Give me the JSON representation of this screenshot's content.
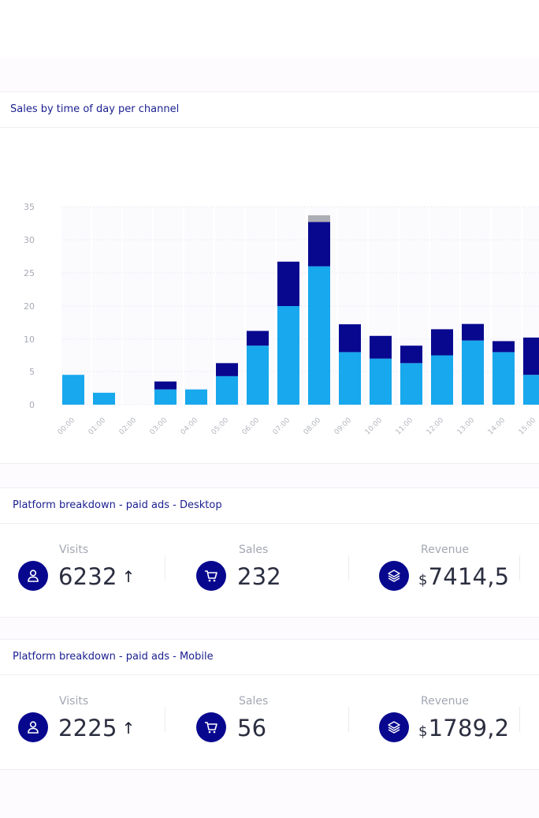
{
  "sales_chart": {
    "title": "Sales by time of day per channel"
  },
  "chart_data": {
    "type": "bar",
    "stacked": true,
    "categories": [
      "00:00",
      "01:00",
      "02:00",
      "03:00",
      "04:00",
      "05:00",
      "06:00",
      "07:00",
      "08:00",
      "09:00",
      "10:00",
      "11:00",
      "12:00",
      "13:00",
      "14:00",
      "15:00"
    ],
    "y_ticks": [
      0,
      5,
      10,
      20,
      25,
      30,
      35
    ],
    "series": [
      {
        "color": "#17a8ed",
        "values": [
          4.5,
          1.8,
          0,
          2.3,
          2.3,
          4.3,
          9,
          20,
          26,
          8,
          7,
          6.3,
          7.5,
          9.8,
          8,
          4.5
        ]
      },
      {
        "color": "#08088f",
        "values": [
          0,
          0,
          0,
          1.2,
          0,
          2,
          3.5,
          6.7,
          6.7,
          6.5,
          4,
          2.7,
          5.5,
          4.8,
          1.7,
          6
        ]
      },
      {
        "color": "#adadb5",
        "values": [
          0,
          0,
          0,
          0,
          0,
          0,
          0,
          0,
          1,
          0,
          0,
          0,
          0,
          0,
          0,
          0
        ]
      }
    ],
    "grid": true,
    "legend": "none"
  },
  "desktop": {
    "title": "Platform breakdown - paid ads - Desktop",
    "visits": {
      "label": "Visits",
      "value": "6232",
      "trend_icon": "arrow-up-icon"
    },
    "sales": {
      "label": "Sales",
      "value": "232"
    },
    "revenue": {
      "label": "Revenue",
      "currency": "$",
      "value": "7414,5"
    }
  },
  "mobile": {
    "title": "Platform breakdown - paid ads - Mobile",
    "visits": {
      "label": "Visits",
      "value": "2225",
      "trend_icon": "arrow-up-icon"
    },
    "sales": {
      "label": "Sales",
      "value": "56"
    },
    "revenue": {
      "label": "Revenue",
      "currency": "$",
      "value": "1789,2"
    }
  },
  "icons": {
    "visits": "user-icon",
    "sales": "cart-icon",
    "revenue": "layers-icon"
  }
}
